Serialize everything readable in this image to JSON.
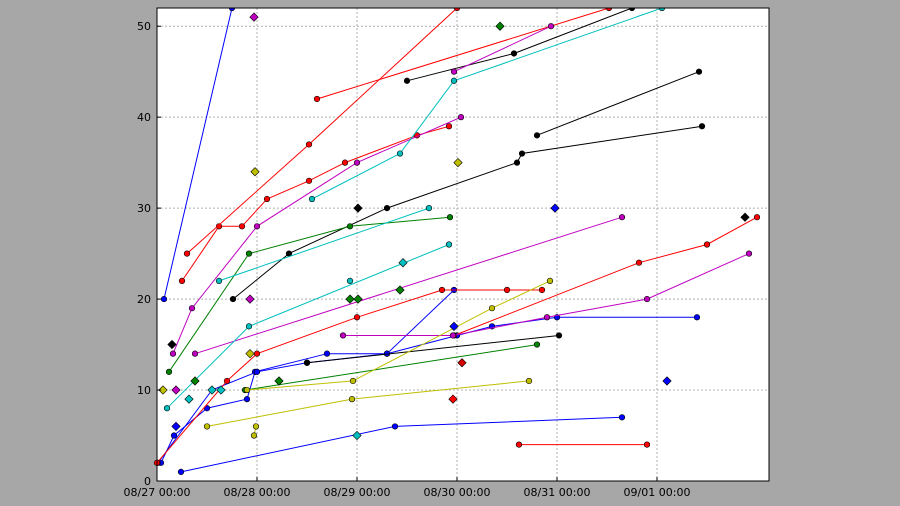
{
  "chart_data": {
    "type": "scatter",
    "title": "",
    "xlabel": "",
    "ylabel": "",
    "x_unit": "days",
    "x_origin_date": "2023-08-27",
    "xlim": [
      0.0,
      6.12
    ],
    "ylim": [
      0,
      52
    ],
    "grid": true,
    "x_ticks": [
      {
        "value": 0,
        "label": "08/27 00:00"
      },
      {
        "value": 1,
        "label": "08/28 00:00"
      },
      {
        "value": 2,
        "label": "08/29 00:00"
      },
      {
        "value": 3,
        "label": "08/30 00:00"
      },
      {
        "value": 4,
        "label": "08/31 00:00"
      },
      {
        "value": 5,
        "label": "09/01 00:00"
      }
    ],
    "y_ticks": [
      0,
      10,
      20,
      30,
      40,
      50
    ],
    "colors": {
      "blue": "#0000ff",
      "red": "#ff0000",
      "black": "#000000",
      "green": "#008000",
      "magenta": "#bf00bf",
      "cyan": "#00bfbf",
      "olive": "#bfbf00",
      "darkred": "#d40000"
    },
    "series": [
      {
        "color": "#0000ff",
        "marker": "circle",
        "points": [
          [
            0.07,
            20
          ],
          [
            0.75,
            52
          ]
        ]
      },
      {
        "color": "#0000ff",
        "marker": "circle",
        "points": [
          [
            0.04,
            2
          ],
          [
            0.17,
            5
          ],
          [
            0.5,
            8
          ],
          [
            0.9,
            9
          ],
          [
            0.98,
            12
          ],
          [
            1.7,
            14
          ],
          [
            2.3,
            14
          ],
          [
            3.0,
            16
          ],
          [
            3.35,
            17
          ],
          [
            4.0,
            18
          ],
          [
            5.4,
            18
          ]
        ]
      },
      {
        "color": "#0000ff",
        "marker": "circle",
        "points": [
          [
            0.01,
            2
          ],
          [
            0.55,
            10
          ],
          [
            1.0,
            12
          ],
          [
            1.5,
            13
          ],
          [
            2.3,
            14
          ],
          [
            2.97,
            21
          ]
        ]
      },
      {
        "color": "#0000ff",
        "marker": "circle",
        "points": [
          [
            0.24,
            1
          ],
          [
            2.38,
            6
          ],
          [
            4.65,
            7
          ]
        ]
      },
      {
        "color": "#ff0000",
        "marker": "circle",
        "points": [
          [
            0.0,
            2
          ],
          [
            0.7,
            11
          ],
          [
            1.0,
            14
          ],
          [
            2.0,
            18
          ],
          [
            2.85,
            21
          ],
          [
            3.5,
            21
          ],
          [
            3.85,
            21
          ]
        ]
      },
      {
        "color": "#ff0000",
        "marker": "circle",
        "points": [
          [
            0.25,
            22
          ],
          [
            0.62,
            28
          ],
          [
            0.85,
            28
          ],
          [
            1.1,
            31
          ],
          [
            1.52,
            33
          ],
          [
            1.88,
            35
          ],
          [
            2.6,
            38
          ],
          [
            2.92,
            39
          ]
        ]
      },
      {
        "color": "#ff0000",
        "marker": "circle",
        "points": [
          [
            0.3,
            25
          ],
          [
            1.52,
            37
          ],
          [
            3.0,
            52
          ]
        ]
      },
      {
        "color": "#ff0000",
        "marker": "circle",
        "points": [
          [
            1.6,
            42
          ],
          [
            4.52,
            52
          ]
        ]
      },
      {
        "color": "#ff0000",
        "marker": "circle",
        "points": [
          [
            3.62,
            4
          ],
          [
            4.9,
            4
          ]
        ]
      },
      {
        "color": "#ff0000",
        "marker": "circle",
        "points": [
          [
            2.97,
            16
          ],
          [
            4.82,
            24
          ],
          [
            5.5,
            26
          ],
          [
            6.0,
            29
          ]
        ]
      },
      {
        "color": "#000000",
        "marker": "circle",
        "points": [
          [
            0.76,
            20
          ],
          [
            1.32,
            25
          ],
          [
            2.3,
            30
          ],
          [
            3.6,
            35
          ],
          [
            3.65,
            36
          ],
          [
            5.45,
            39
          ]
        ]
      },
      {
        "color": "#000000",
        "marker": "circle",
        "points": [
          [
            3.8,
            38
          ],
          [
            5.42,
            45
          ]
        ]
      },
      {
        "color": "#000000",
        "marker": "circle",
        "points": [
          [
            2.5,
            44
          ],
          [
            3.57,
            47
          ],
          [
            4.75,
            52
          ]
        ]
      },
      {
        "color": "#000000",
        "marker": "circle",
        "points": [
          [
            1.5,
            13
          ],
          [
            4.02,
            16
          ]
        ]
      },
      {
        "color": "#008000",
        "marker": "circle",
        "points": [
          [
            0.12,
            12
          ],
          [
            0.92,
            25
          ],
          [
            1.93,
            28
          ],
          [
            2.93,
            29
          ]
        ]
      },
      {
        "color": "#008000",
        "marker": "circle",
        "points": [
          [
            0.88,
            10
          ],
          [
            3.8,
            15
          ]
        ]
      },
      {
        "color": "#bf00bf",
        "marker": "circle",
        "points": [
          [
            0.16,
            14
          ],
          [
            0.35,
            19
          ],
          [
            1.0,
            28
          ],
          [
            2.0,
            35
          ],
          [
            3.04,
            40
          ]
        ]
      },
      {
        "color": "#bf00bf",
        "marker": "circle",
        "points": [
          [
            0.38,
            14
          ],
          [
            4.65,
            29
          ]
        ]
      },
      {
        "color": "#bf00bf",
        "marker": "circle",
        "points": [
          [
            1.86,
            16
          ],
          [
            2.96,
            16
          ],
          [
            3.9,
            18
          ],
          [
            4.9,
            20
          ],
          [
            5.92,
            25
          ]
        ]
      },
      {
        "color": "#bf00bf",
        "marker": "circle",
        "points": [
          [
            2.97,
            45
          ],
          [
            3.94,
            50
          ]
        ]
      },
      {
        "color": "#00bfbf",
        "marker": "circle",
        "points": [
          [
            0.1,
            8
          ],
          [
            0.92,
            17
          ],
          [
            2.92,
            26
          ]
        ]
      },
      {
        "color": "#00bfbf",
        "marker": "circle",
        "points": [
          [
            0.62,
            22
          ],
          [
            2.72,
            30
          ]
        ]
      },
      {
        "color": "#00bfbf",
        "marker": "circle",
        "points": [
          [
            1.55,
            31
          ],
          [
            2.43,
            36
          ],
          [
            2.97,
            44
          ],
          [
            5.05,
            52
          ]
        ]
      },
      {
        "color": "#00bfbf",
        "marker": "circle",
        "points": [
          [
            1.93,
            22
          ]
        ]
      },
      {
        "color": "#bfbf00",
        "marker": "circle",
        "points": [
          [
            0.5,
            6
          ],
          [
            1.95,
            9
          ],
          [
            3.72,
            11
          ]
        ]
      },
      {
        "color": "#bfbf00",
        "marker": "circle",
        "points": [
          [
            0.9,
            10
          ],
          [
            1.96,
            11
          ],
          [
            3.35,
            19
          ],
          [
            3.93,
            22
          ]
        ]
      },
      {
        "color": "#bfbf00",
        "marker": "circle",
        "points": [
          [
            0.97,
            5
          ],
          [
            0.99,
            6
          ]
        ]
      }
    ],
    "markers": [
      {
        "color": "#bf00bf",
        "shape": "diamond",
        "x": 0.97,
        "y": 51
      },
      {
        "color": "#bfbf00",
        "shape": "diamond",
        "x": 0.98,
        "y": 34
      },
      {
        "color": "#bfbf00",
        "shape": "diamond",
        "x": 3.01,
        "y": 35
      },
      {
        "color": "#008000",
        "shape": "diamond",
        "x": 3.43,
        "y": 50
      },
      {
        "color": "#000000",
        "shape": "diamond",
        "x": 2.01,
        "y": 30
      },
      {
        "color": "#0000ff",
        "shape": "diamond",
        "x": 3.98,
        "y": 30
      },
      {
        "color": "#000000",
        "shape": "diamond",
        "x": 5.88,
        "y": 29
      },
      {
        "color": "#00bfbf",
        "shape": "diamond",
        "x": 2.46,
        "y": 24
      },
      {
        "color": "#008000",
        "shape": "diamond",
        "x": 2.43,
        "y": 21
      },
      {
        "color": "#008000",
        "shape": "diamond",
        "x": 1.93,
        "y": 20
      },
      {
        "color": "#008000",
        "shape": "diamond",
        "x": 2.01,
        "y": 20
      },
      {
        "color": "#bf00bf",
        "shape": "diamond",
        "x": 0.93,
        "y": 20
      },
      {
        "color": "#000000",
        "shape": "diamond",
        "x": 0.15,
        "y": 15
      },
      {
        "color": "#bfbf00",
        "shape": "diamond",
        "x": 0.93,
        "y": 14
      },
      {
        "color": "#0000ff",
        "shape": "diamond",
        "x": 2.97,
        "y": 17
      },
      {
        "color": "#d40000",
        "shape": "diamond",
        "x": 3.05,
        "y": 13
      },
      {
        "color": "#008000",
        "shape": "diamond",
        "x": 0.38,
        "y": 11
      },
      {
        "color": "#008000",
        "shape": "diamond",
        "x": 1.22,
        "y": 11
      },
      {
        "color": "#0000ff",
        "shape": "diamond",
        "x": 5.1,
        "y": 11
      },
      {
        "color": "#bfbf00",
        "shape": "diamond",
        "x": 0.06,
        "y": 10
      },
      {
        "color": "#bf00bf",
        "shape": "diamond",
        "x": 0.19,
        "y": 10
      },
      {
        "color": "#00bfbf",
        "shape": "diamond",
        "x": 0.55,
        "y": 10
      },
      {
        "color": "#00bfbf",
        "shape": "diamond",
        "x": 0.64,
        "y": 10
      },
      {
        "color": "#00bfbf",
        "shape": "diamond",
        "x": 0.32,
        "y": 9
      },
      {
        "color": "#ff0000",
        "shape": "diamond",
        "x": 2.96,
        "y": 9
      },
      {
        "color": "#0000ff",
        "shape": "diamond",
        "x": 0.19,
        "y": 6
      },
      {
        "color": "#00bfbf",
        "shape": "diamond",
        "x": 2.0,
        "y": 5
      }
    ]
  }
}
